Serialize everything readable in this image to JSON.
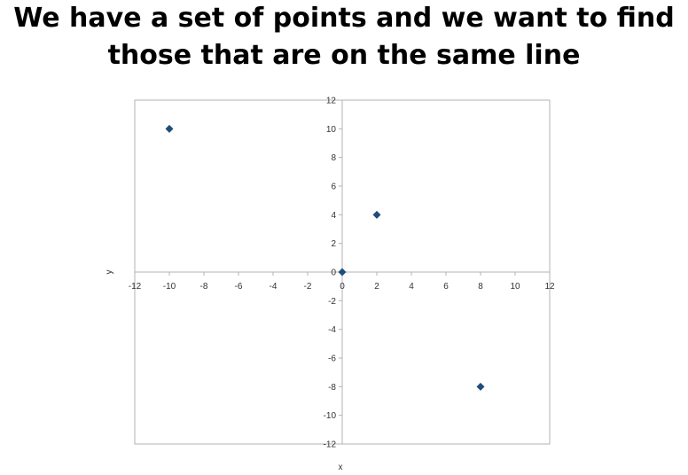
{
  "slide": {
    "title_line1": "We have a set of points and we want to find",
    "title_line2": "those that are on the same line"
  },
  "chart_data": {
    "type": "scatter",
    "title": "",
    "xlabel": "x",
    "ylabel": "y",
    "xlim": [
      -12,
      12
    ],
    "ylim": [
      -12,
      12
    ],
    "x_ticks": [
      -12,
      -10,
      -8,
      -6,
      -4,
      -2,
      0,
      2,
      4,
      6,
      8,
      10,
      12
    ],
    "y_ticks": [
      -12,
      -10,
      -8,
      -6,
      -4,
      -2,
      0,
      2,
      4,
      6,
      8,
      10,
      12
    ],
    "grid": false,
    "legend": "none",
    "marker": "diamond",
    "series": [
      {
        "color": "#1f4e79",
        "points": [
          {
            "x": -10,
            "y": 10
          },
          {
            "x": 0,
            "y": 0
          },
          {
            "x": 2,
            "y": 4
          },
          {
            "x": 8,
            "y": -8
          }
        ]
      }
    ]
  }
}
